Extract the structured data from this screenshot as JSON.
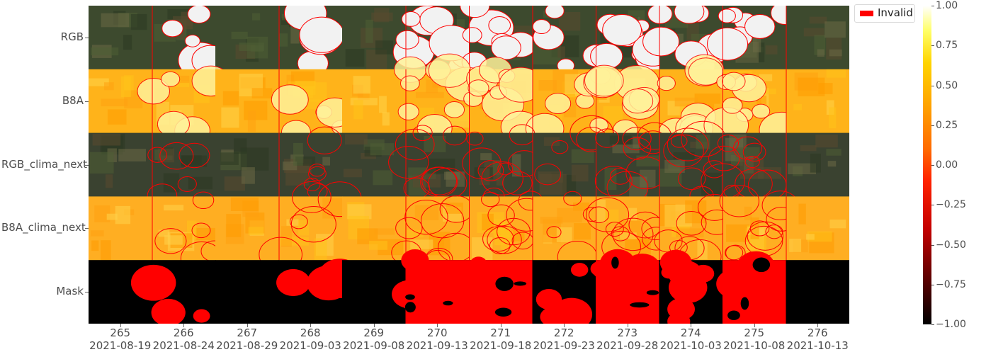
{
  "chart_data": {
    "type": "heatmap",
    "rows": [
      "RGB",
      "B8A",
      "RGB_clima_next",
      "B8A_clima_next",
      "Mask"
    ],
    "columns": [
      {
        "index": "265",
        "date": "2021-08-19"
      },
      {
        "index": "266",
        "date": "2021-08-24"
      },
      {
        "index": "267",
        "date": "2021-08-29"
      },
      {
        "index": "268",
        "date": "2021-09-03"
      },
      {
        "index": "269",
        "date": "2021-09-08"
      },
      {
        "index": "270",
        "date": "2021-09-13"
      },
      {
        "index": "271",
        "date": "2021-09-18"
      },
      {
        "index": "272",
        "date": "2021-09-23"
      },
      {
        "index": "273",
        "date": "2021-09-28"
      },
      {
        "index": "274",
        "date": "2021-10-03"
      },
      {
        "index": "275",
        "date": "2021-10-08"
      },
      {
        "index": "276",
        "date": "2021-10-13"
      }
    ],
    "cloud_fraction": [
      0.0,
      0.55,
      0.0,
      0.6,
      0.0,
      0.9,
      1.0,
      0.45,
      1.0,
      0.8,
      1.0,
      0.05
    ],
    "legend": {
      "label": "Invalid",
      "color": "#ff0000",
      "placement": "top-right"
    },
    "colorbar": {
      "range": [
        -1.0,
        1.0
      ],
      "ticks": [
        "1.00",
        "0.75",
        "0.50",
        "0.25",
        "0.00",
        "−0.25",
        "−0.50",
        "−0.75",
        "−1.00"
      ],
      "colormap": "hot"
    },
    "grid": false
  },
  "colors": {
    "invalid": "#ff0000",
    "vegetation": "#3b4a2c",
    "cloud": "#f4f4f4",
    "b8a_base": "#ffb000",
    "mask_valid": "#000000"
  }
}
